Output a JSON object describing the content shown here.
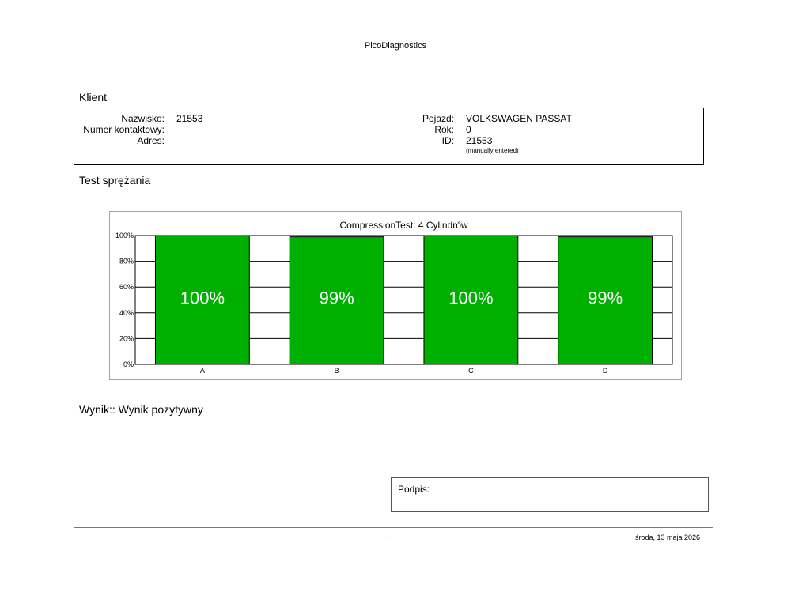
{
  "header": {
    "title": "PicoDiagnostics"
  },
  "client": {
    "section_title": "Klient",
    "name_label": "Nazwisko:",
    "name_value": "21553",
    "contact_label": "Numer kontaktowy:",
    "contact_value": "",
    "address_label": "Adres:",
    "address_value": "",
    "vehicle_label": "Pojazd:",
    "vehicle_value": "VOLKSWAGEN PASSAT",
    "year_label": "Rok:",
    "year_value": "0",
    "id_label": "ID:",
    "id_value": "21553",
    "id_note": "(manually entered)"
  },
  "test": {
    "section_title": "Test sprężania"
  },
  "chart_data": {
    "type": "bar",
    "title": "CompressionTest: 4 Cylindrów",
    "categories": [
      "A",
      "B",
      "C",
      "D"
    ],
    "values": [
      100,
      99,
      100,
      99
    ],
    "value_labels": [
      "100%",
      "99%",
      "100%",
      "99%"
    ],
    "yticks": [
      "0%",
      "20%",
      "40%",
      "60%",
      "80%",
      "100%"
    ],
    "ylim": [
      0,
      100
    ],
    "bar_color": "#00b000",
    "grid": true,
    "legend": "none"
  },
  "result": {
    "text": "Wynik:: Wynik pozytywny"
  },
  "signature": {
    "label": "Podpis:"
  },
  "footer": {
    "center": "-",
    "date": "środa, 13 maja 2026"
  }
}
